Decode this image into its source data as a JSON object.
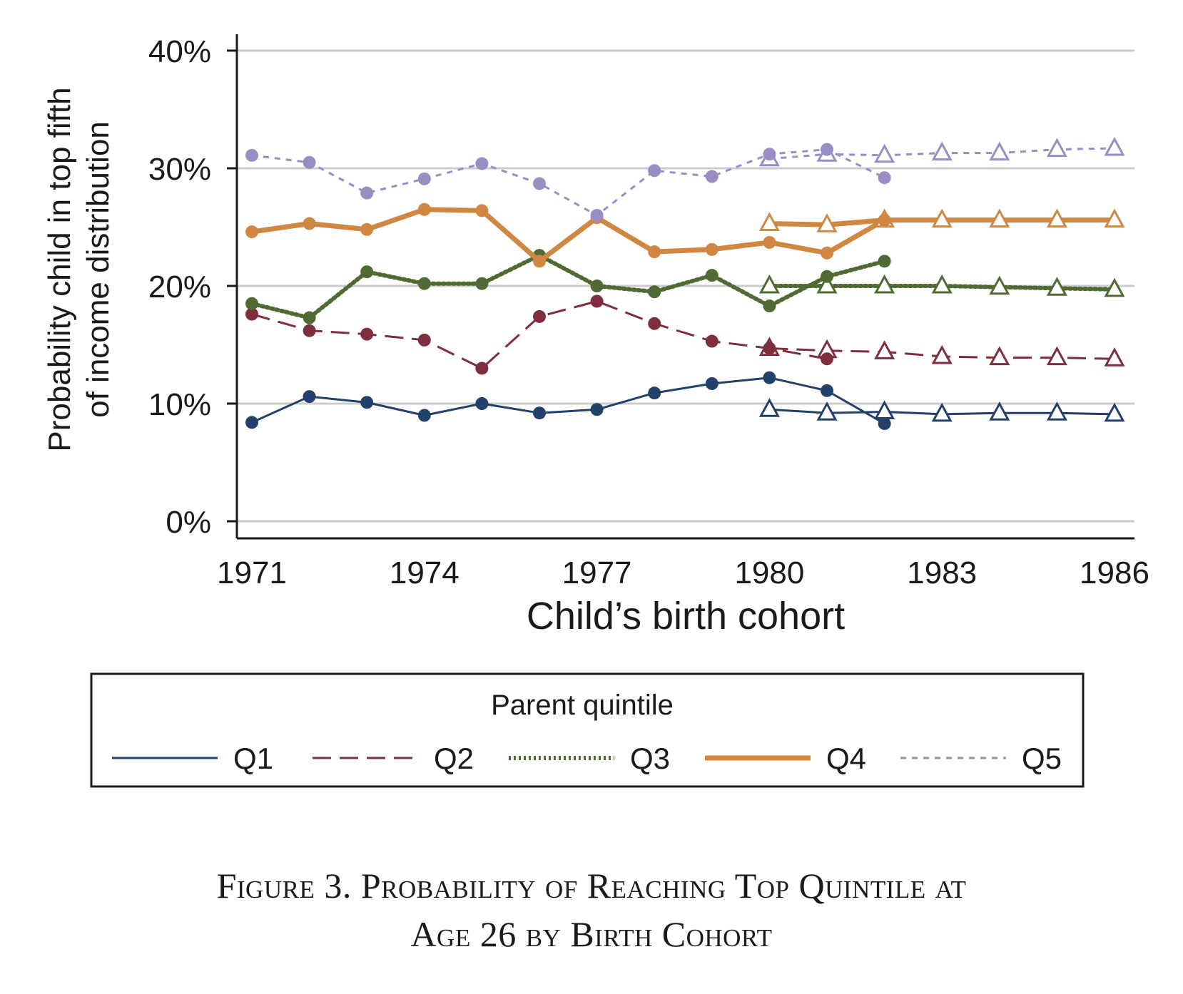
{
  "caption": {
    "line1": "Figure 3. Probability of Reaching Top Quintile at",
    "line2": "Age 26 by Birth Cohort"
  },
  "chart_data": {
    "type": "line",
    "title": "",
    "xlabel": "Child’s birth cohort",
    "ylabel_line1": "Probability child in top fifth",
    "ylabel_line2": "of income distribution",
    "xlim": [
      1971,
      1986
    ],
    "ylim": [
      0,
      40
    ],
    "x_ticks": [
      1971,
      1974,
      1977,
      1980,
      1983,
      1986
    ],
    "y_ticks": [
      0,
      10,
      20,
      30,
      40
    ],
    "y_tick_labels": [
      "0%",
      "10%",
      "20%",
      "30%",
      "40%"
    ],
    "grid": "horizontal",
    "legend": {
      "title": "Parent quintile",
      "placement": "bottom",
      "entries": [
        "Q1",
        "Q2",
        "Q3",
        "Q4",
        "Q5"
      ]
    },
    "series": [
      {
        "name": "Q1",
        "color": "#23416b",
        "style": "solid",
        "circles": {
          "x": [
            1971,
            1972,
            1973,
            1974,
            1975,
            1976,
            1977,
            1978,
            1979,
            1980,
            1981,
            1982
          ],
          "y": [
            8.4,
            10.6,
            10.1,
            9.0,
            10.0,
            9.2,
            9.5,
            10.9,
            11.7,
            12.2,
            11.1,
            8.3
          ]
        },
        "triangles": {
          "x": [
            1980,
            1981,
            1982,
            1983,
            1984,
            1985,
            1986
          ],
          "y": [
            9.5,
            9.2,
            9.3,
            9.1,
            9.2,
            9.2,
            9.1
          ]
        }
      },
      {
        "name": "Q2",
        "color": "#7e2e3c",
        "style": "dashed",
        "circles": {
          "x": [
            1971,
            1972,
            1973,
            1974,
            1975,
            1976,
            1977,
            1978,
            1979,
            1980,
            1981
          ],
          "y": [
            17.6,
            16.2,
            15.9,
            15.4,
            13.0,
            17.4,
            18.7,
            16.8,
            15.3,
            14.7,
            13.8
          ]
        },
        "triangles": {
          "x": [
            1980,
            1981,
            1982,
            1983,
            1984,
            1985,
            1986
          ],
          "y": [
            14.7,
            14.5,
            14.4,
            14.0,
            13.9,
            13.9,
            13.8
          ]
        }
      },
      {
        "name": "Q3",
        "color": "#4f6b33",
        "style": "dotted",
        "circles": {
          "x": [
            1971,
            1972,
            1973,
            1974,
            1975,
            1976,
            1977,
            1978,
            1979,
            1980,
            1981,
            1982
          ],
          "y": [
            18.5,
            17.3,
            21.2,
            20.2,
            20.2,
            22.6,
            20.0,
            19.5,
            20.9,
            18.3,
            20.8,
            22.1
          ]
        },
        "triangles": {
          "x": [
            1980,
            1981,
            1982,
            1983,
            1984,
            1985,
            1986
          ],
          "y": [
            20.0,
            20.0,
            20.0,
            20.0,
            19.9,
            19.8,
            19.7
          ]
        }
      },
      {
        "name": "Q4",
        "color": "#cf8742",
        "style": "thick-solid",
        "circles": {
          "x": [
            1971,
            1972,
            1973,
            1974,
            1975,
            1976,
            1977,
            1978,
            1979,
            1980,
            1981,
            1982
          ],
          "y": [
            24.6,
            25.3,
            24.8,
            26.5,
            26.4,
            22.1,
            25.8,
            22.9,
            23.1,
            23.7,
            22.8,
            25.6
          ]
        },
        "triangles": {
          "x": [
            1980,
            1981,
            1982,
            1983,
            1984,
            1985,
            1986
          ],
          "y": [
            25.3,
            25.2,
            25.6,
            25.6,
            25.6,
            25.6,
            25.6
          ]
        }
      },
      {
        "name": "Q5",
        "color": "#9a8dc4",
        "style": "short-dashed",
        "circles": {
          "x": [
            1971,
            1972,
            1973,
            1974,
            1975,
            1976,
            1977,
            1978,
            1979,
            1980,
            1981,
            1982
          ],
          "y": [
            31.1,
            30.5,
            27.9,
            29.1,
            30.4,
            28.7,
            26.0,
            29.8,
            29.3,
            31.2,
            31.6,
            29.2
          ]
        },
        "triangles": {
          "x": [
            1980,
            1981,
            1982,
            1983,
            1984,
            1985,
            1986
          ],
          "y": [
            30.8,
            31.2,
            31.1,
            31.3,
            31.3,
            31.6,
            31.7
          ]
        }
      }
    ]
  }
}
